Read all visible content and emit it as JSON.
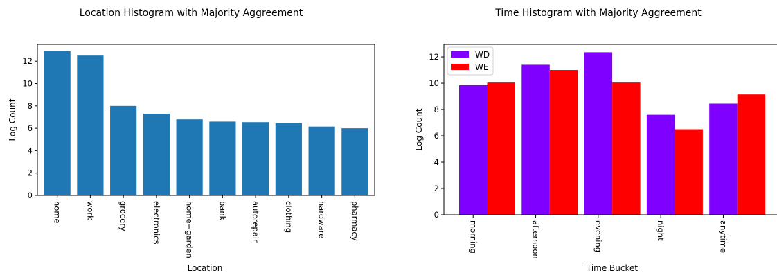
{
  "chart_data": [
    {
      "type": "bar",
      "title": "Location Histogram with Majority Aggreement",
      "xlabel": "Location",
      "ylabel": "Log Count",
      "categories": [
        "home",
        "work",
        "grocery",
        "electronics",
        "home+garden",
        "bank",
        "autorepair",
        "clothing",
        "hardware",
        "pharmacy"
      ],
      "values": [
        12.9,
        12.5,
        8.0,
        7.3,
        6.8,
        6.6,
        6.55,
        6.45,
        6.15,
        6.0
      ],
      "yticks": [
        0,
        2,
        4,
        6,
        8,
        10,
        12
      ],
      "ylim": [
        0,
        13.5
      ],
      "grid": false,
      "color": "#1f77b4"
    },
    {
      "type": "bar",
      "title": "Time Histogram with Majority Aggreement",
      "xlabel": "Time Bucket",
      "ylabel": "Log Count",
      "categories": [
        "morning",
        "afternoon",
        "evening",
        "night",
        "anytime"
      ],
      "series": [
        {
          "name": "WD",
          "color": "#7f00ff",
          "values": [
            9.85,
            11.4,
            12.35,
            7.6,
            8.45
          ]
        },
        {
          "name": "WE",
          "color": "#ff0000",
          "values": [
            10.05,
            11.0,
            10.05,
            6.5,
            9.15
          ]
        }
      ],
      "yticks": [
        0,
        2,
        4,
        6,
        8,
        10,
        12
      ],
      "ylim": [
        0,
        12.95
      ],
      "grid": false,
      "legend": "top-left"
    }
  ]
}
